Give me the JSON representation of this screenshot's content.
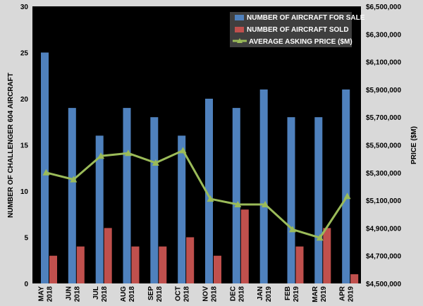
{
  "chart_data": {
    "type": "bar",
    "categories": [
      [
        "MAY",
        "2018"
      ],
      [
        "JUN",
        "2018"
      ],
      [
        "JUL",
        "2018"
      ],
      [
        "AUG",
        "2018"
      ],
      [
        "SEP",
        "2018"
      ],
      [
        "OCT",
        "2018"
      ],
      [
        "NOV",
        "2018"
      ],
      [
        "DEC",
        "2018"
      ],
      [
        "JAN",
        "2019"
      ],
      [
        "FEB",
        "2019"
      ],
      [
        "MAR",
        "2019"
      ],
      [
        "APR",
        "2019"
      ]
    ],
    "series": [
      {
        "name": "NUMBER OF AIRCRAFT FOR SALE",
        "kind": "bar",
        "axis": "left",
        "color": "#4f81bd",
        "values": [
          25,
          19,
          16,
          19,
          18,
          16,
          20,
          19,
          21,
          18,
          18,
          21
        ]
      },
      {
        "name": "NUMBER OF AIRCRAFT SOLD",
        "kind": "bar",
        "axis": "left",
        "color": "#c0504d",
        "values": [
          3,
          4,
          6,
          4,
          4,
          5,
          3,
          8,
          0,
          4,
          6,
          1
        ]
      },
      {
        "name": "AVERAGE ASKING PRICE ($M)",
        "kind": "line",
        "axis": "right",
        "color": "#9bbb59",
        "values": [
          5300000,
          5250000,
          5420000,
          5440000,
          5370000,
          5460000,
          5110000,
          5070000,
          5070000,
          4890000,
          4830000,
          5130000
        ]
      }
    ],
    "ylabel": "NUMBER OF CHALLENGER 604 AIRCRAFT",
    "y2label": "PRICE ($M)",
    "ylim": [
      0,
      30
    ],
    "yticks": [
      "0",
      "5",
      "10",
      "15",
      "20",
      "25",
      "30"
    ],
    "y2lim": [
      4500000,
      6500000
    ],
    "y2ticks": [
      "$4,500,000",
      "$4,700,000",
      "$4,900,000",
      "$5,100,000",
      "$5,300,000",
      "$5,500,000",
      "$5,700,000",
      "$5,900,000",
      "$6,100,000",
      "$6,300,000",
      "$6,500,000"
    ],
    "legend_position": "top-right",
    "plot_background": "#000000",
    "grid": false
  }
}
